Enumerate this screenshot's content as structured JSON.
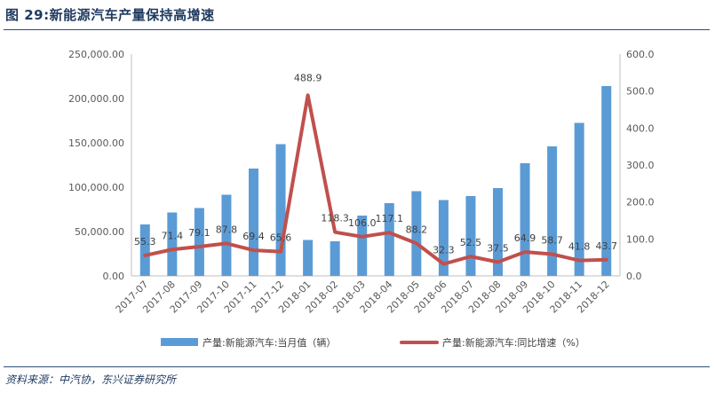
{
  "figure": {
    "title": "图  29:新能源汽车产量保持高增速",
    "source": "资料来源：中汽协，东兴证券研究所"
  },
  "colors": {
    "bar": "#5b9bd5",
    "line": "#c0504d",
    "rule": "#2e4f7a",
    "title": "#1f3a5f"
  },
  "chart_data": {
    "type": "bar+line",
    "categories": [
      "2017-07",
      "2017-08",
      "2017-09",
      "2017-10",
      "2017-11",
      "2017-12",
      "2018-01",
      "2018-02",
      "2018-03",
      "2018-04",
      "2018-05",
      "2018-06",
      "2018-07",
      "2018-08",
      "2018-09",
      "2018-10",
      "2018-11",
      "2018-12"
    ],
    "series": [
      {
        "name": "产量:新能源汽车:当月值（辆）",
        "type": "bar",
        "axis": "left",
        "values": [
          58000,
          71500,
          76500,
          91500,
          121000,
          148500,
          40500,
          39000,
          68000,
          82000,
          95500,
          85500,
          90000,
          99000,
          127000,
          146000,
          172500,
          214000
        ]
      },
      {
        "name": "产量:新能源汽车:同比增速（%）",
        "type": "line",
        "axis": "right",
        "values": [
          55.3,
          71.4,
          79.1,
          87.8,
          69.4,
          65.6,
          488.9,
          118.3,
          106.0,
          117.1,
          88.2,
          32.3,
          52.5,
          37.5,
          64.9,
          58.7,
          41.8,
          43.7
        ],
        "labels": [
          "55.3",
          "71.4",
          "79.1",
          "87.8",
          "69.4",
          "65.6",
          "488.9",
          "118.3",
          "106.0",
          "117.1",
          "88.2",
          "32.3",
          "52.5",
          "37.5",
          "64.9",
          "58.7",
          "41.8",
          "43.7"
        ]
      }
    ],
    "left_axis": {
      "ylim": [
        0,
        250000
      ],
      "ticks": [
        "0.00",
        "50,000.00",
        "100,000.00",
        "150,000.00",
        "200,000.00",
        "250,000.00"
      ]
    },
    "right_axis": {
      "ylim": [
        0,
        600
      ],
      "ticks": [
        "0.0",
        "100.0",
        "200.0",
        "300.0",
        "400.0",
        "500.0",
        "600.0"
      ]
    },
    "grid": false,
    "legend": "bottom"
  }
}
